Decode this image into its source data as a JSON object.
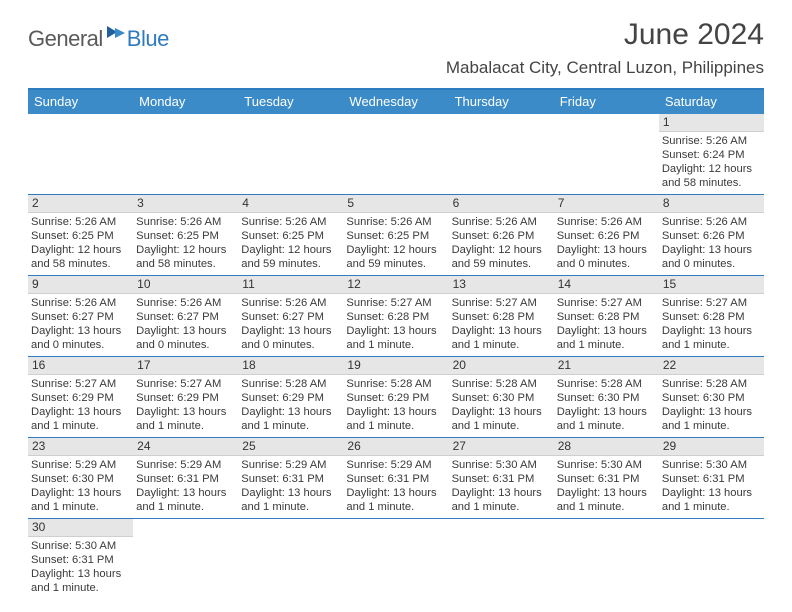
{
  "logo": {
    "text1": "General",
    "text2": "Blue"
  },
  "title": "June 2024",
  "location": "Mabalacat City, Central Luzon, Philippines",
  "colors": {
    "header_bg": "#3b8bc9",
    "header_text": "#ffffff",
    "border": "#2f7bbf",
    "day_band": "#e6e6e6",
    "text": "#333333"
  },
  "day_names": [
    "Sunday",
    "Monday",
    "Tuesday",
    "Wednesday",
    "Thursday",
    "Friday",
    "Saturday"
  ],
  "weeks": [
    [
      {
        "n": "",
        "empty": true
      },
      {
        "n": "",
        "empty": true
      },
      {
        "n": "",
        "empty": true
      },
      {
        "n": "",
        "empty": true
      },
      {
        "n": "",
        "empty": true
      },
      {
        "n": "",
        "empty": true
      },
      {
        "n": "1",
        "sunrise": "5:26 AM",
        "sunset": "6:24 PM",
        "daylight": "12 hours and 58 minutes."
      }
    ],
    [
      {
        "n": "2",
        "sunrise": "5:26 AM",
        "sunset": "6:25 PM",
        "daylight": "12 hours and 58 minutes."
      },
      {
        "n": "3",
        "sunrise": "5:26 AM",
        "sunset": "6:25 PM",
        "daylight": "12 hours and 58 minutes."
      },
      {
        "n": "4",
        "sunrise": "5:26 AM",
        "sunset": "6:25 PM",
        "daylight": "12 hours and 59 minutes."
      },
      {
        "n": "5",
        "sunrise": "5:26 AM",
        "sunset": "6:25 PM",
        "daylight": "12 hours and 59 minutes."
      },
      {
        "n": "6",
        "sunrise": "5:26 AM",
        "sunset": "6:26 PM",
        "daylight": "12 hours and 59 minutes."
      },
      {
        "n": "7",
        "sunrise": "5:26 AM",
        "sunset": "6:26 PM",
        "daylight": "13 hours and 0 minutes."
      },
      {
        "n": "8",
        "sunrise": "5:26 AM",
        "sunset": "6:26 PM",
        "daylight": "13 hours and 0 minutes."
      }
    ],
    [
      {
        "n": "9",
        "sunrise": "5:26 AM",
        "sunset": "6:27 PM",
        "daylight": "13 hours and 0 minutes."
      },
      {
        "n": "10",
        "sunrise": "5:26 AM",
        "sunset": "6:27 PM",
        "daylight": "13 hours and 0 minutes."
      },
      {
        "n": "11",
        "sunrise": "5:26 AM",
        "sunset": "6:27 PM",
        "daylight": "13 hours and 0 minutes."
      },
      {
        "n": "12",
        "sunrise": "5:27 AM",
        "sunset": "6:28 PM",
        "daylight": "13 hours and 1 minute."
      },
      {
        "n": "13",
        "sunrise": "5:27 AM",
        "sunset": "6:28 PM",
        "daylight": "13 hours and 1 minute."
      },
      {
        "n": "14",
        "sunrise": "5:27 AM",
        "sunset": "6:28 PM",
        "daylight": "13 hours and 1 minute."
      },
      {
        "n": "15",
        "sunrise": "5:27 AM",
        "sunset": "6:28 PM",
        "daylight": "13 hours and 1 minute."
      }
    ],
    [
      {
        "n": "16",
        "sunrise": "5:27 AM",
        "sunset": "6:29 PM",
        "daylight": "13 hours and 1 minute."
      },
      {
        "n": "17",
        "sunrise": "5:27 AM",
        "sunset": "6:29 PM",
        "daylight": "13 hours and 1 minute."
      },
      {
        "n": "18",
        "sunrise": "5:28 AM",
        "sunset": "6:29 PM",
        "daylight": "13 hours and 1 minute."
      },
      {
        "n": "19",
        "sunrise": "5:28 AM",
        "sunset": "6:29 PM",
        "daylight": "13 hours and 1 minute."
      },
      {
        "n": "20",
        "sunrise": "5:28 AM",
        "sunset": "6:30 PM",
        "daylight": "13 hours and 1 minute."
      },
      {
        "n": "21",
        "sunrise": "5:28 AM",
        "sunset": "6:30 PM",
        "daylight": "13 hours and 1 minute."
      },
      {
        "n": "22",
        "sunrise": "5:28 AM",
        "sunset": "6:30 PM",
        "daylight": "13 hours and 1 minute."
      }
    ],
    [
      {
        "n": "23",
        "sunrise": "5:29 AM",
        "sunset": "6:30 PM",
        "daylight": "13 hours and 1 minute."
      },
      {
        "n": "24",
        "sunrise": "5:29 AM",
        "sunset": "6:31 PM",
        "daylight": "13 hours and 1 minute."
      },
      {
        "n": "25",
        "sunrise": "5:29 AM",
        "sunset": "6:31 PM",
        "daylight": "13 hours and 1 minute."
      },
      {
        "n": "26",
        "sunrise": "5:29 AM",
        "sunset": "6:31 PM",
        "daylight": "13 hours and 1 minute."
      },
      {
        "n": "27",
        "sunrise": "5:30 AM",
        "sunset": "6:31 PM",
        "daylight": "13 hours and 1 minute."
      },
      {
        "n": "28",
        "sunrise": "5:30 AM",
        "sunset": "6:31 PM",
        "daylight": "13 hours and 1 minute."
      },
      {
        "n": "29",
        "sunrise": "5:30 AM",
        "sunset": "6:31 PM",
        "daylight": "13 hours and 1 minute."
      }
    ],
    [
      {
        "n": "30",
        "sunrise": "5:30 AM",
        "sunset": "6:31 PM",
        "daylight": "13 hours and 1 minute."
      },
      {
        "n": "",
        "empty": true
      },
      {
        "n": "",
        "empty": true
      },
      {
        "n": "",
        "empty": true
      },
      {
        "n": "",
        "empty": true
      },
      {
        "n": "",
        "empty": true
      },
      {
        "n": "",
        "empty": true
      }
    ]
  ],
  "labels": {
    "sunrise": "Sunrise:",
    "sunset": "Sunset:",
    "daylight": "Daylight:"
  }
}
